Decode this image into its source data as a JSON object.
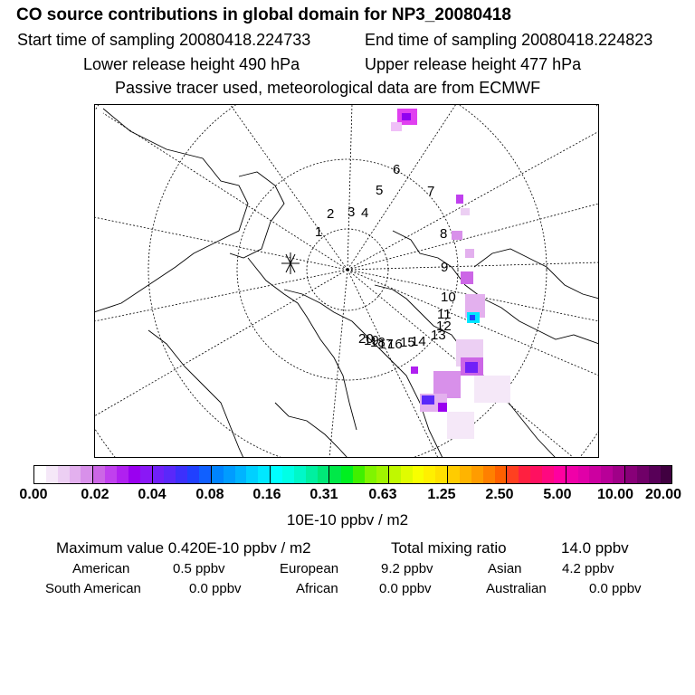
{
  "header": {
    "title": "CO  source contributions in global domain for NP3_20080418",
    "start_time": "Start time of sampling 20080418.224733",
    "end_time": "End time of sampling 20080418.224823",
    "lower_release": "Lower release height  490 hPa",
    "upper_release": "Upper release height  477 hPa",
    "tracer_note": "Passive tracer used, meteorological data are from ECMWF"
  },
  "map": {
    "projection": "north-polar-stereographic",
    "release_marker": "asterisk",
    "trajectory_labels": [
      "1",
      "2",
      "3",
      "4",
      "5",
      "6",
      "7",
      "8",
      "9",
      "10",
      "11",
      "12",
      "13",
      "14",
      "15",
      "16",
      "17",
      "18",
      "19",
      "20"
    ]
  },
  "colorbar": {
    "colors": [
      "#ffffff",
      "#f5e8f8",
      "#eccff3",
      "#e3b0ee",
      "#d890ea",
      "#cc66e6",
      "#c040ee",
      "#b020f0",
      "#9a00f0",
      "#8a18f6",
      "#7020f8",
      "#5a28fa",
      "#3c30fc",
      "#2040ff",
      "#1060ff",
      "#0084ff",
      "#009cff",
      "#00b4ff",
      "#00d0ff",
      "#00e8ff",
      "#00ffff",
      "#00ffe6",
      "#00f8c8",
      "#00f0a0",
      "#00e878",
      "#00e848",
      "#00f020",
      "#40f000",
      "#80f400",
      "#a0f400",
      "#c0f800",
      "#e0fc00",
      "#f8ff00",
      "#fff000",
      "#ffe000",
      "#ffcc00",
      "#ffb400",
      "#ff9c00",
      "#ff8000",
      "#ff6000",
      "#ff4020",
      "#ff2040",
      "#ff1060",
      "#ff0880",
      "#ff00a0",
      "#f000a8",
      "#e000a8",
      "#cc00a0",
      "#b80098",
      "#a00088",
      "#880078",
      "#700068",
      "#580058",
      "#400040"
    ],
    "tick_labels": [
      "0.00",
      "0.02",
      "0.04",
      "0.08",
      "0.16",
      "0.31",
      "0.63",
      "1.25",
      "2.50",
      "5.00",
      "10.00",
      "20.00"
    ],
    "unit": "10E-10 ppbv / m2"
  },
  "stats": {
    "maximum": "Maximum value  0.420E-10 ppbv / m2",
    "total": "Total mixing ratio",
    "total_value": "14.0 ppbv",
    "regions": [
      {
        "name": "American",
        "value": "0.5 ppbv"
      },
      {
        "name": "European",
        "value": "9.2 ppbv"
      },
      {
        "name": "Asian",
        "value": "4.2 ppbv"
      },
      {
        "name": "South American",
        "value": "0.0 ppbv"
      },
      {
        "name": "African",
        "value": "0.0 ppbv"
      },
      {
        "name": "Australian",
        "value": "0.0 ppbv"
      }
    ]
  }
}
